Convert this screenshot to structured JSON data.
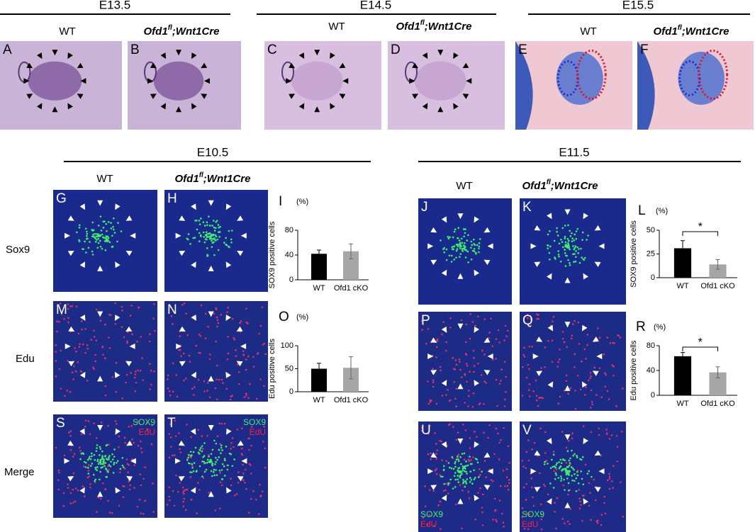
{
  "stages": [
    "E13.5",
    "E14.5",
    "E15.5",
    "E10.5",
    "E11.5"
  ],
  "genotypes": {
    "wt": "WT",
    "mutant": {
      "gene": "Ofd1",
      "allele": "fl",
      "driver": ";Wnt1Cre"
    }
  },
  "panel_letters": [
    "A",
    "B",
    "C",
    "D",
    "E",
    "F",
    "G",
    "H",
    "J",
    "K",
    "M",
    "N",
    "P",
    "Q",
    "S",
    "T",
    "U",
    "V"
  ],
  "row_labels": [
    "Sox9",
    "Edu",
    "Merge"
  ],
  "overlay": {
    "sox9": "SOX9",
    "edu": "EdU"
  },
  "chart_data": [
    {
      "type": "bar",
      "panel": "I",
      "unit": "(%)",
      "ylabel": "SOX9 positive cells",
      "categories": [
        "WT",
        "Ofd1 cKO"
      ],
      "values": [
        42,
        46
      ],
      "errors": [
        6,
        12
      ],
      "colors": [
        "#000000",
        "#a6a6a6"
      ],
      "ylim": [
        0,
        80
      ],
      "yticks": [
        0,
        40,
        80
      ]
    },
    {
      "type": "bar",
      "panel": "L",
      "unit": "(%)",
      "ylabel": "SOX9 positive cells",
      "categories": [
        "WT",
        "Ofd1 cKO"
      ],
      "values": [
        31,
        14
      ],
      "errors": [
        8,
        5
      ],
      "colors": [
        "#000000",
        "#a6a6a6"
      ],
      "ylim": [
        0,
        50
      ],
      "yticks": [
        0,
        25,
        50
      ],
      "significance": "*"
    },
    {
      "type": "bar",
      "panel": "O",
      "unit": "(%)",
      "ylabel": "Edu positive cells",
      "categories": [
        "WT",
        "Ofd1 cKO"
      ],
      "values": [
        50,
        52
      ],
      "errors": [
        12,
        24
      ],
      "colors": [
        "#000000",
        "#a6a6a6"
      ],
      "ylim": [
        0,
        100
      ],
      "yticks": [
        0,
        50,
        100
      ]
    },
    {
      "type": "bar",
      "panel": "R",
      "unit": "(%)",
      "ylabel": "Edu positive cells",
      "categories": [
        "WT",
        "Ofd1 cKO"
      ],
      "values": [
        63,
        37
      ],
      "errors": [
        6,
        9
      ],
      "colors": [
        "#000000",
        "#a6a6a6"
      ],
      "ylim": [
        0,
        80
      ],
      "yticks": [
        0,
        40,
        80
      ],
      "significance": "*"
    }
  ]
}
